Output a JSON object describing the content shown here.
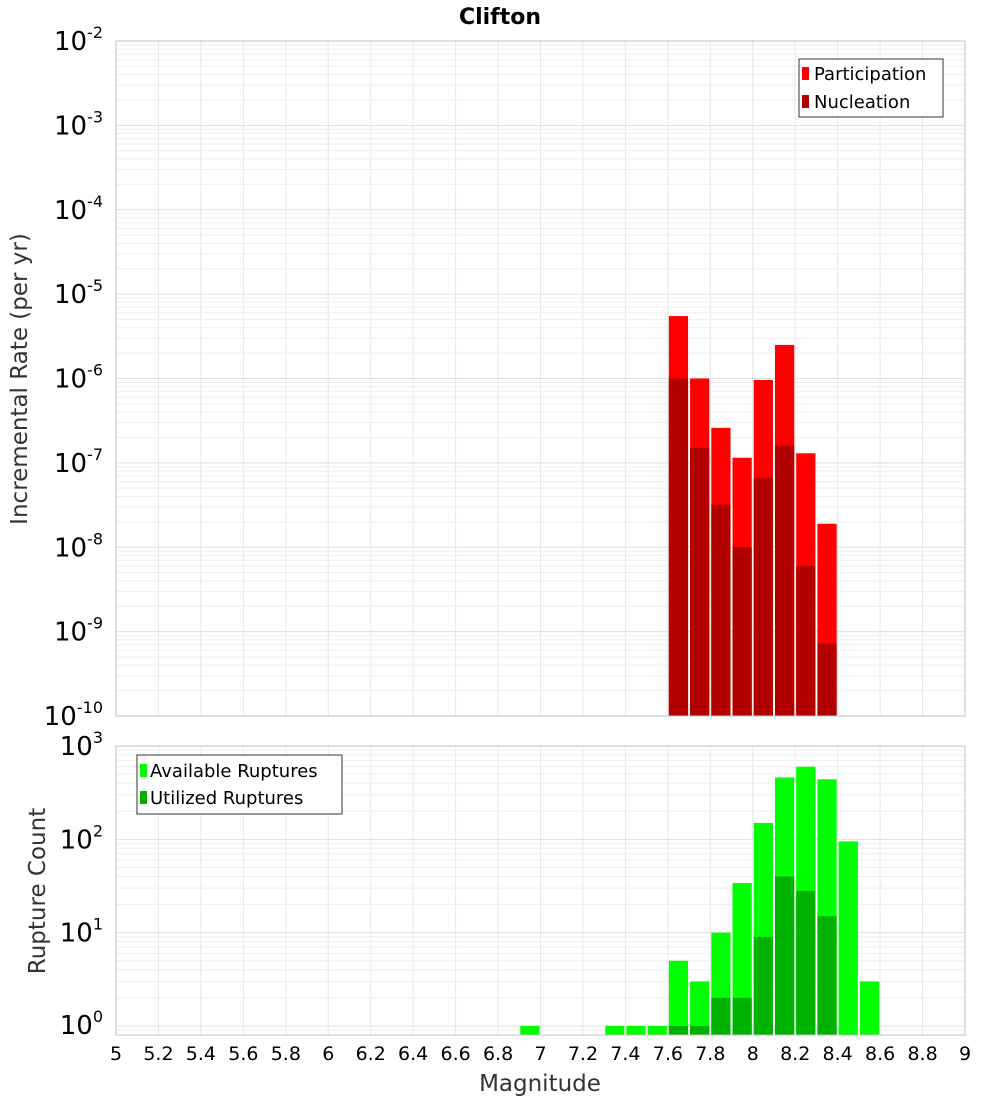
{
  "chart_data": [
    {
      "type": "bar",
      "title": "Clifton",
      "ylabel": "Incremental Rate (per yr)",
      "xlabel": "",
      "y_scale": "log",
      "ylim": [
        1e-10,
        0.01
      ],
      "xlim": [
        5,
        9
      ],
      "y_tick_labels": [
        {
          "base": "10",
          "exp": "-2",
          "value": 0.01
        },
        {
          "base": "10",
          "exp": "-3",
          "value": 0.001
        },
        {
          "base": "10",
          "exp": "-4",
          "value": 0.0001
        },
        {
          "base": "10",
          "exp": "-5",
          "value": 1e-05
        },
        {
          "base": "10",
          "exp": "-6",
          "value": 1e-06
        },
        {
          "base": "10",
          "exp": "-7",
          "value": 1e-07
        },
        {
          "base": "10",
          "exp": "-8",
          "value": 1e-08
        },
        {
          "base": "10",
          "exp": "-9",
          "value": 1e-09
        },
        {
          "base": "10",
          "exp": "-10",
          "value": 1e-10
        }
      ],
      "grid": true,
      "legend_position": "top-right",
      "bar_width": 0.1,
      "x": [
        7.65,
        7.75,
        7.85,
        7.95,
        8.05,
        8.15,
        8.25,
        8.35
      ],
      "series": [
        {
          "name": "Participation",
          "color": "#ff0000",
          "values": [
            5.5e-06,
            1e-06,
            2.6e-07,
            1.15e-07,
            9.6e-07,
            2.5e-06,
            1.3e-07,
            1.9e-08
          ]
        },
        {
          "name": "Nucleation",
          "color": "#b20000",
          "values": [
            1e-06,
            1.5e-07,
            3.2e-08,
            1e-08,
            6.6e-08,
            1.6e-07,
            6e-09,
            7.2e-10
          ]
        }
      ]
    },
    {
      "type": "bar",
      "title": "",
      "ylabel": "Rupture Count",
      "xlabel": "Magnitude",
      "y_scale": "log",
      "ylim": [
        0.8,
        1000
      ],
      "xlim": [
        5,
        9
      ],
      "y_tick_labels": [
        {
          "base": "10",
          "exp": "3",
          "value": 1000
        },
        {
          "base": "10",
          "exp": "2",
          "value": 100
        },
        {
          "base": "10",
          "exp": "1",
          "value": 10
        },
        {
          "base": "10",
          "exp": "0",
          "value": 1
        }
      ],
      "x_ticks": [
        "5",
        "5.2",
        "5.4",
        "5.6",
        "5.8",
        "6",
        "6.2",
        "6.4",
        "6.6",
        "6.8",
        "7",
        "7.2",
        "7.4",
        "7.6",
        "7.8",
        "8",
        "8.2",
        "8.4",
        "8.6",
        "8.8",
        "9"
      ],
      "grid": true,
      "legend_position": "top-left",
      "bar_width": 0.1,
      "series": [
        {
          "name": "Available Ruptures",
          "color": "#00ff00",
          "x": [
            6.95,
            7.35,
            7.45,
            7.55,
            7.65,
            7.75,
            7.85,
            7.95,
            8.05,
            8.15,
            8.25,
            8.35,
            8.45,
            8.55
          ],
          "values": [
            1,
            1,
            1,
            1,
            5,
            3,
            10,
            34,
            150,
            460,
            600,
            440,
            95,
            3
          ]
        },
        {
          "name": "Utilized Ruptures",
          "color": "#00b200",
          "x": [
            7.65,
            7.75,
            7.85,
            7.95,
            8.05,
            8.15,
            8.25,
            8.35
          ],
          "values": [
            1,
            1,
            2,
            2,
            9,
            40,
            28,
            15
          ]
        }
      ]
    }
  ]
}
